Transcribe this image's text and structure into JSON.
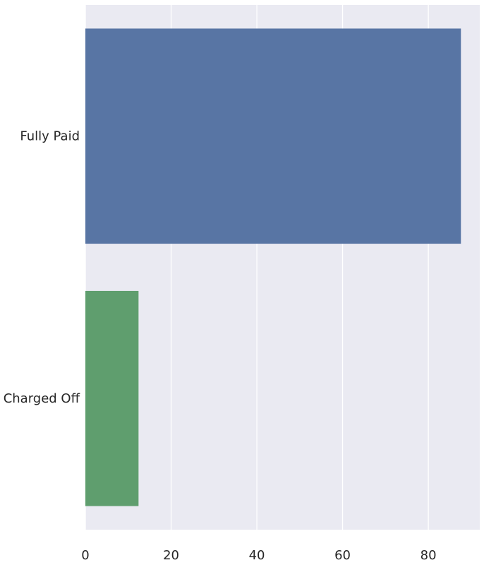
{
  "chart_data": {
    "type": "bar",
    "orientation": "horizontal",
    "categories": [
      "Fully Paid",
      "Charged Off"
    ],
    "values": [
      87.6,
      12.4
    ],
    "colors": [
      "#5875a4",
      "#5f9e6e"
    ],
    "xlim": [
      0,
      92
    ],
    "xticks": [
      0,
      20,
      40,
      60,
      80
    ],
    "title": "",
    "xlabel": "",
    "ylabel": "",
    "grid": true,
    "background": "#eaeaf2",
    "gridColor": "#ffffff"
  }
}
